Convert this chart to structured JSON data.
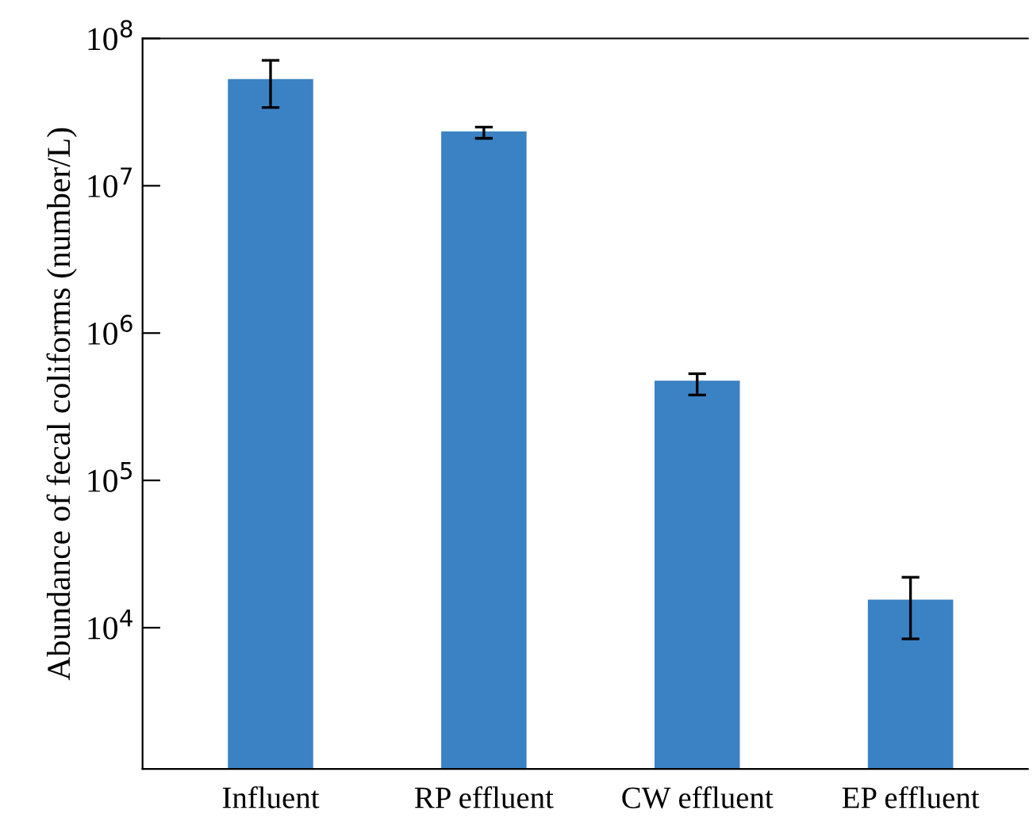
{
  "chart_data": {
    "type": "bar",
    "ylabel": "Abundance of fecal coliforms (number/L)",
    "categories": [
      "Influent",
      "RP effluent",
      "CW effluent",
      "EP effluent"
    ],
    "values": [
      53000000,
      23400000,
      475000,
      15500
    ],
    "errors": [
      [
        34000000,
        71000000
      ],
      [
        21000000,
        25000000
      ],
      [
        380000,
        530000
      ],
      [
        8400,
        22000
      ]
    ],
    "color": "#3b82c4",
    "log": "y",
    "ylim": [
      1100,
      100000000
    ],
    "yticks": [
      {
        "value": 10000,
        "label": "10$^{4}$"
      },
      {
        "value": 100000,
        "label": "10$^{5}$"
      },
      {
        "value": 1000000,
        "label": "10$^{6}$"
      },
      {
        "value": 10000000,
        "label": "10$^{7}$"
      },
      {
        "value": 100000000,
        "label": "10$^{8}$"
      }
    ],
    "grid": false
  }
}
